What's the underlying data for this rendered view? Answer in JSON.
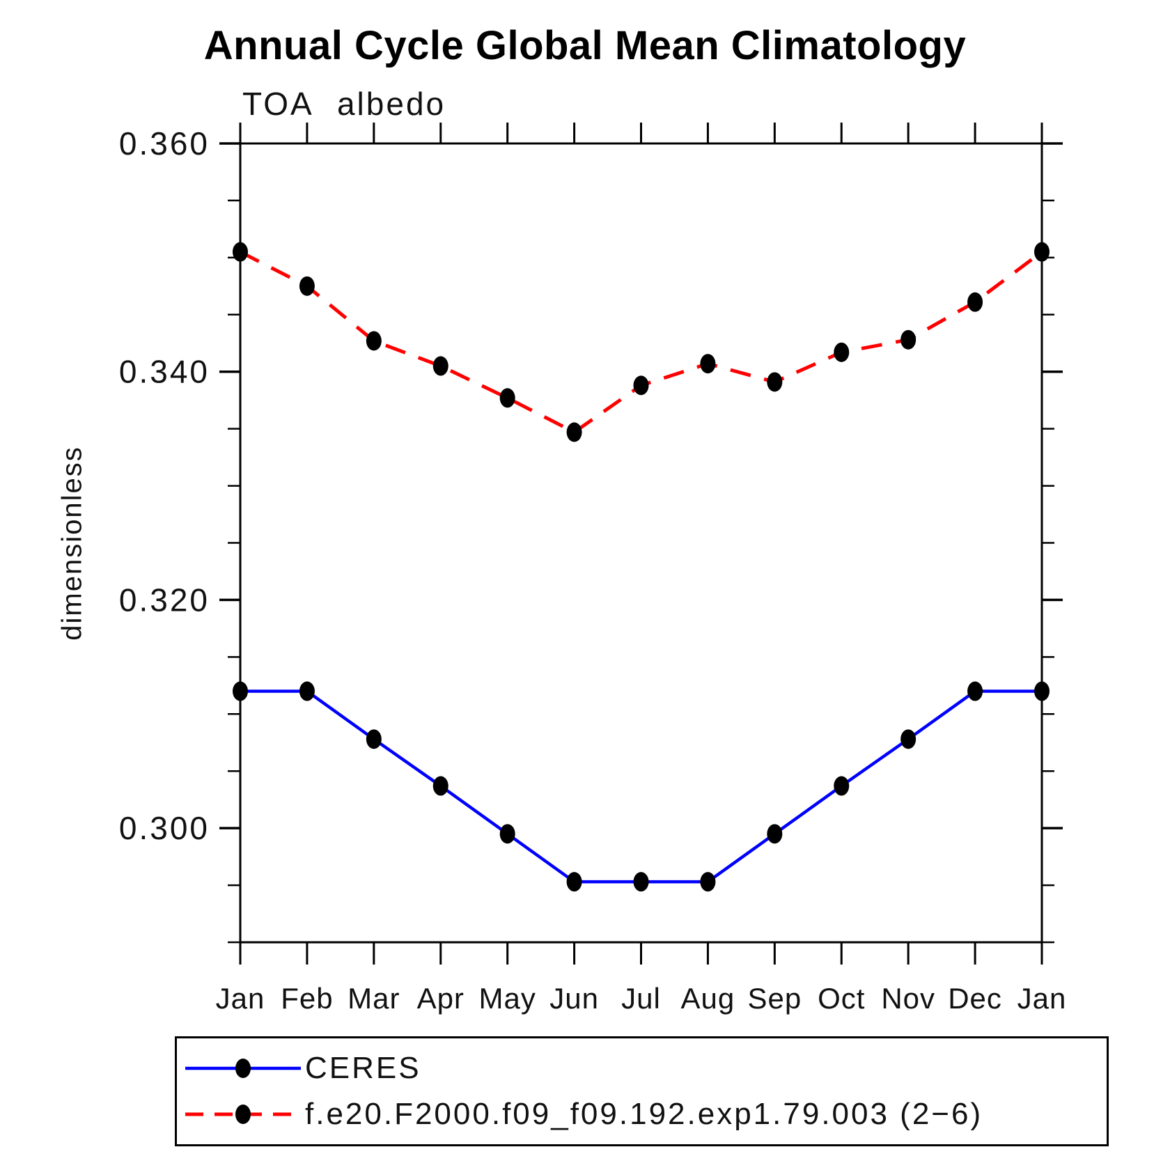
{
  "page": {
    "title": "Annual Cycle Global Mean Climatology",
    "subtitle": "TOA albedo",
    "ylabel": "dimensionless"
  },
  "chart_data": {
    "type": "line",
    "title": "Annual Cycle Global Mean Climatology",
    "subtitle": "TOA albedo",
    "ylabel": "dimensionless",
    "x_labels": [
      "Jan",
      "Feb",
      "Mar",
      "Apr",
      "May",
      "Jun",
      "Jul",
      "Aug",
      "Sep",
      "Oct",
      "Nov",
      "Dec",
      "Jan"
    ],
    "ylim": [
      0.29,
      0.36
    ],
    "ytick_major": [
      0.3,
      0.32,
      0.34,
      0.36
    ],
    "ytick_labels": [
      "0.300",
      "0.320",
      "0.340",
      "0.360"
    ],
    "ytick_minor_step": 0.005,
    "grid": false,
    "legend_position": "below",
    "marker": "filled-circle",
    "marker_color": "#000000",
    "series": [
      {
        "name": "CERES",
        "color": "#0000ff",
        "style": "solid",
        "values": [
          0.312,
          0.312,
          0.3078,
          0.3037,
          0.2995,
          0.2953,
          0.2953,
          0.2953,
          0.2995,
          0.3037,
          0.3078,
          0.312,
          0.312
        ]
      },
      {
        "name": "f.e20.F2000.f09_f09.192.exp1.79.003 (2−6)",
        "color": "#ff0000",
        "style": "dashed",
        "values": [
          0.3505,
          0.3475,
          0.3427,
          0.3405,
          0.3377,
          0.3347,
          0.3388,
          0.3407,
          0.3391,
          0.3417,
          0.3428,
          0.3461,
          0.3505
        ]
      }
    ]
  }
}
